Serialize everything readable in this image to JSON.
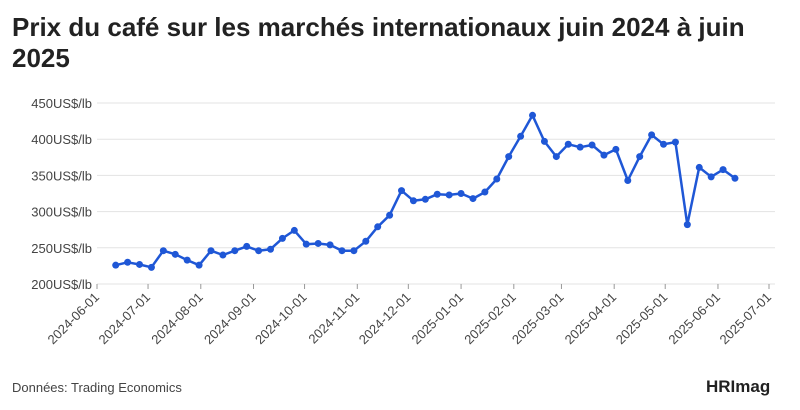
{
  "chart_data": {
    "type": "line",
    "title": "Prix du café sur les marchés internationaux juin 2024 à juin 2025",
    "source": "Données: Trading Economics",
    "logo": "HRImag",
    "x": [
      "2024-06-12",
      "2024-06-19",
      "2024-06-26",
      "2024-07-03",
      "2024-07-10",
      "2024-07-17",
      "2024-07-24",
      "2024-07-31",
      "2024-08-07",
      "2024-08-14",
      "2024-08-21",
      "2024-08-28",
      "2024-09-04",
      "2024-09-11",
      "2024-09-18",
      "2024-09-25",
      "2024-10-02",
      "2024-10-09",
      "2024-10-16",
      "2024-10-23",
      "2024-10-30",
      "2024-11-06",
      "2024-11-13",
      "2024-11-20",
      "2024-11-27",
      "2024-12-04",
      "2024-12-11",
      "2024-12-18",
      "2024-12-25",
      "2025-01-01",
      "2025-01-08",
      "2025-01-15",
      "2025-01-22",
      "2025-01-29",
      "2025-02-05",
      "2025-02-12",
      "2025-02-19",
      "2025-02-26",
      "2025-03-05",
      "2025-03-12",
      "2025-03-19",
      "2025-03-26",
      "2025-04-02",
      "2025-04-09",
      "2025-04-16",
      "2025-04-23",
      "2025-04-30",
      "2025-05-07",
      "2025-05-14",
      "2025-05-21",
      "2025-05-28",
      "2025-06-04",
      "2025-06-11"
    ],
    "series": [
      {
        "name": "Prix du café",
        "color": "#1f57d6",
        "values": [
          226,
          230,
          227,
          223,
          246,
          241,
          233,
          226,
          246,
          240,
          246,
          252,
          246,
          248,
          263,
          274,
          255,
          256,
          254,
          246,
          246,
          259,
          279,
          295,
          329,
          315,
          317,
          324,
          323,
          325,
          318,
          327,
          345,
          376,
          404,
          433,
          397,
          376,
          393,
          389,
          392,
          378,
          386,
          343,
          376,
          406,
          393,
          396,
          282,
          361,
          348,
          358,
          346
        ]
      }
    ],
    "xlim": [
      "2024-06-01",
      "2025-07-01"
    ],
    "xticks": [
      "2024-06-01",
      "2024-07-01",
      "2024-08-01",
      "2024-09-01",
      "2024-10-01",
      "2024-11-01",
      "2024-12-01",
      "2025-01-01",
      "2025-02-01",
      "2025-03-01",
      "2025-04-01",
      "2025-05-01",
      "2025-06-01",
      "2025-07-01"
    ],
    "ylim": [
      200,
      450
    ],
    "yticks": [
      {
        "value": 200,
        "label": "200US$/lb"
      },
      {
        "value": 250,
        "label": "250US$/lb"
      },
      {
        "value": 300,
        "label": "300US$/lb"
      },
      {
        "value": 350,
        "label": "350US$/lb"
      },
      {
        "value": 400,
        "label": "400US$/lb"
      },
      {
        "value": 450,
        "label": "450US$/lb"
      }
    ],
    "grid": true
  }
}
